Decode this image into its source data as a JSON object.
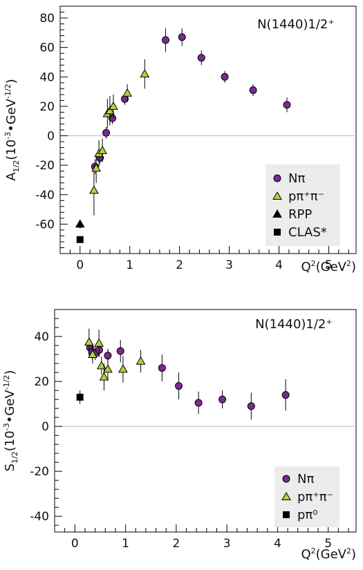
{
  "chart_data": [
    {
      "type": "scatter",
      "title": "N(1440)1/2⁺",
      "xlabel": {
        "base": "Q",
        "sup": "2",
        "mid": "(GeV",
        "sup2": "2",
        "end": ")"
      },
      "ylabel": {
        "base": "A",
        "sub": "1/2",
        "mid": "(10",
        "sup": "-3",
        "mid2": "•GeV",
        "sup2": "-1/2",
        "end": ")"
      },
      "xlim": [
        -0.4,
        5.55
      ],
      "ylim": [
        -80,
        88
      ],
      "xticks": [
        0,
        1,
        2,
        3,
        4,
        5
      ],
      "yticks": [
        -60,
        -40,
        -20,
        0,
        20,
        40,
        60,
        80
      ],
      "legend_position": "bottom-right",
      "series": [
        {
          "name": "Nπ",
          "marker": "circle",
          "color": "#7b2a8f",
          "points": [
            {
              "x": 0.3,
              "y": -21,
              "err": 5
            },
            {
              "x": 0.4,
              "y": -15,
              "err": 4
            },
            {
              "x": 0.525,
              "y": 2,
              "err": 4
            },
            {
              "x": 0.65,
              "y": 12,
              "err": 4
            },
            {
              "x": 0.9,
              "y": 25,
              "err": 4
            },
            {
              "x": 1.72,
              "y": 65,
              "err": 8
            },
            {
              "x": 2.05,
              "y": 67,
              "err": 6
            },
            {
              "x": 2.44,
              "y": 53,
              "err": 5
            },
            {
              "x": 2.91,
              "y": 40,
              "err": 4
            },
            {
              "x": 3.48,
              "y": 31,
              "err": 4
            },
            {
              "x": 4.16,
              "y": 21,
              "err": 5
            }
          ]
        },
        {
          "name": "pπ⁺π⁻",
          "marker": "triangle",
          "color": "#b7cf3a",
          "points": [
            {
              "x": 0.28,
              "y": -37,
              "err": 17
            },
            {
              "x": 0.325,
              "y": -22,
              "err": 10
            },
            {
              "x": 0.38,
              "y": -12,
              "err": 9
            },
            {
              "x": 0.45,
              "y": -10,
              "err": 8
            },
            {
              "x": 0.55,
              "y": 15,
              "err": 10
            },
            {
              "x": 0.6,
              "y": 17,
              "err": 10
            },
            {
              "x": 0.67,
              "y": 20,
              "err": 8
            },
            {
              "x": 0.95,
              "y": 29,
              "err": 6
            },
            {
              "x": 1.3,
              "y": 42,
              "err": 10
            }
          ]
        },
        {
          "name": "RPP",
          "marker": "triangle",
          "color": "#000000",
          "points": [
            {
              "x": 0.0,
              "y": -60,
              "err": 3
            }
          ]
        },
        {
          "name": "CLAS*",
          "marker": "square",
          "color": "#000000",
          "points": [
            {
              "x": 0.0,
              "y": -70.5,
              "err": 1.5
            }
          ]
        }
      ]
    },
    {
      "type": "scatter",
      "title": "N(1440)1/2⁺",
      "xlabel": {
        "base": "Q",
        "sup": "2",
        "mid": "(GeV",
        "sup2": "2",
        "end": ")"
      },
      "ylabel": {
        "base": "S",
        "sub": "1/2",
        "mid": "(10",
        "sup": "-3",
        "mid2": "•GeV",
        "sup2": "-1/2",
        "end": ")"
      },
      "xlim": [
        -0.4,
        5.55
      ],
      "ylim": [
        -47,
        52
      ],
      "xticks": [
        0,
        1,
        2,
        3,
        4,
        5
      ],
      "yticks": [
        -40,
        -20,
        0,
        20,
        40
      ],
      "legend_position": "bottom-right",
      "series": [
        {
          "name": "Nπ",
          "marker": "circle",
          "color": "#7b2a8f",
          "points": [
            {
              "x": 0.3,
              "y": 35,
              "err": 3
            },
            {
              "x": 0.34,
              "y": 33,
              "err": 3
            },
            {
              "x": 0.4,
              "y": 32.5,
              "err": 3
            },
            {
              "x": 0.48,
              "y": 34,
              "err": 3
            },
            {
              "x": 0.65,
              "y": 31.5,
              "err": 3
            },
            {
              "x": 0.9,
              "y": 33.5,
              "err": 5
            },
            {
              "x": 1.72,
              "y": 26,
              "err": 6
            },
            {
              "x": 2.05,
              "y": 18,
              "err": 6
            },
            {
              "x": 2.44,
              "y": 10.5,
              "err": 5
            },
            {
              "x": 2.91,
              "y": 12,
              "err": 4
            },
            {
              "x": 3.48,
              "y": 9,
              "err": 6
            },
            {
              "x": 4.16,
              "y": 14,
              "err": 7
            }
          ]
        },
        {
          "name": "pπ⁺π⁻",
          "marker": "triangle",
          "color": "#b7cf3a",
          "points": [
            {
              "x": 0.28,
              "y": 37.5,
              "err": 6
            },
            {
              "x": 0.35,
              "y": 32,
              "err": 4
            },
            {
              "x": 0.475,
              "y": 37,
              "err": 6
            },
            {
              "x": 0.525,
              "y": 27,
              "err": 4
            },
            {
              "x": 0.575,
              "y": 22,
              "err": 6
            },
            {
              "x": 0.65,
              "y": 25.5,
              "err": 5
            },
            {
              "x": 0.95,
              "y": 25.5,
              "err": 6
            },
            {
              "x": 1.3,
              "y": 29,
              "err": 5
            }
          ]
        },
        {
          "name": "pπ⁰",
          "marker": "square",
          "color": "#000000",
          "points": [
            {
              "x": 0.1,
              "y": 13,
              "err": 3
            }
          ]
        }
      ]
    }
  ]
}
